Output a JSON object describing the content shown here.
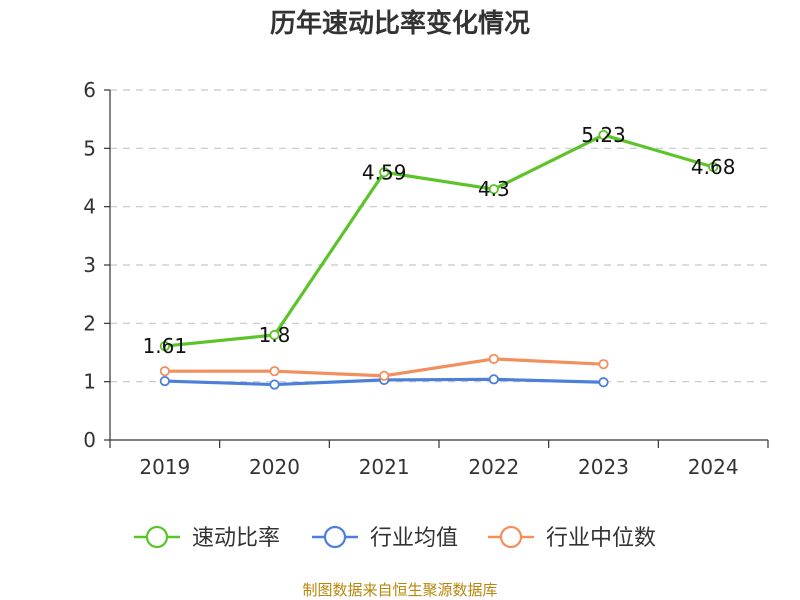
{
  "title": "历年速动比率变化情况",
  "source": "制图数据来自恒生聚源数据库",
  "chart_data": {
    "type": "line",
    "title": "历年速动比率变化情况",
    "categories": [
      "2019",
      "2020",
      "2021",
      "2022",
      "2023",
      "2024"
    ],
    "ylim": [
      0,
      6
    ],
    "yticks": [
      0,
      1,
      2,
      3,
      4,
      5,
      6
    ],
    "grid": true,
    "legend_position": "bottom",
    "series": [
      {
        "name": "速动比率",
        "color": "#5cc42a",
        "values": [
          1.61,
          1.8,
          4.59,
          4.3,
          5.23,
          4.68
        ],
        "labels": [
          "1.61",
          "1.8",
          "4.59",
          "4.3",
          "5.23",
          "4.68"
        ]
      },
      {
        "name": "行业均值",
        "color": "#4b7fd9",
        "values": [
          1.01,
          0.95,
          1.03,
          1.04,
          0.99,
          null
        ]
      },
      {
        "name": "行业中位数",
        "color": "#f28f5c",
        "values": [
          1.18,
          1.18,
          1.1,
          1.39,
          1.3,
          null
        ]
      }
    ]
  }
}
